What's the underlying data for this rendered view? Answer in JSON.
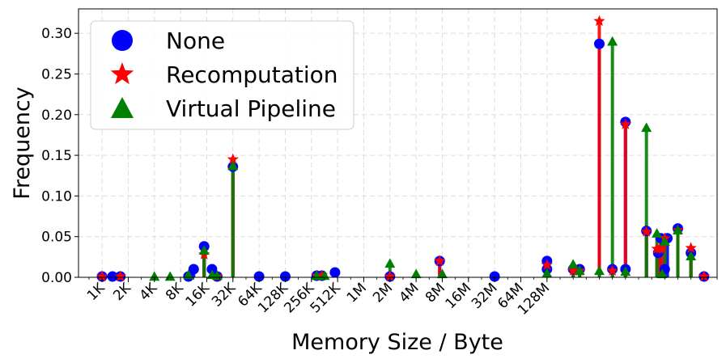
{
  "chart_data": {
    "type": "scatter",
    "style": "stem",
    "title": "",
    "xlabel": "Memory Size / Byte",
    "ylabel": "Frequency",
    "ylim": [
      0,
      0.33
    ],
    "x_scale": "log2",
    "x_tick_labels": [
      "1K",
      "2K",
      "4K",
      "8K",
      "16K",
      "32K",
      "64K",
      "128K",
      "256K",
      "512K",
      "1M",
      "2M",
      "4M",
      "8M",
      "16M",
      "32M",
      "64M",
      "128M"
    ],
    "y_ticks": [
      "0.00",
      "0.05",
      "0.10",
      "0.15",
      "0.20",
      "0.25",
      "0.30"
    ],
    "grid": true,
    "legend_position": "top-left",
    "series": [
      {
        "name": "None",
        "color": "#0000ff",
        "marker": "circle",
        "x_log2": [
          10.0,
          10.4,
          10.7,
          13.3,
          13.5,
          13.9,
          14.2,
          14.4,
          15.0,
          16.0,
          17.0,
          18.2,
          18.4,
          18.9,
          21.0,
          22.9,
          25.0,
          27.0,
          27.0,
          28.0,
          28.25,
          29.0,
          29.5,
          30.0,
          30.0,
          30.8,
          31.25,
          31.35,
          31.5,
          31.6,
          32.0,
          32.5,
          33.0
        ],
        "values": [
          0.001,
          0.001,
          0.001,
          0.001,
          0.01,
          0.038,
          0.01,
          0.001,
          0.136,
          0.001,
          0.001,
          0.002,
          0.002,
          0.006,
          0.001,
          0.02,
          0.001,
          0.01,
          0.02,
          0.01,
          0.01,
          0.287,
          0.01,
          0.191,
          0.01,
          0.057,
          0.03,
          0.048,
          0.01,
          0.048,
          0.06,
          0.03,
          0.001
        ]
      },
      {
        "name": "Recomputation",
        "color": "#ff0000",
        "marker": "star",
        "x_log2": [
          10.0,
          10.7,
          13.9,
          14.4,
          15.0,
          18.2,
          18.4,
          21.0,
          22.9,
          27.0,
          28.0,
          28.25,
          29.0,
          29.5,
          30.0,
          30.8,
          31.2,
          31.3,
          31.4,
          31.5,
          32.0,
          32.5,
          33.0
        ],
        "values": [
          0.001,
          0.001,
          0.028,
          0.001,
          0.145,
          0.002,
          0.002,
          0.001,
          0.02,
          0.015,
          0.008,
          0.008,
          0.315,
          0.008,
          0.188,
          0.056,
          0.035,
          0.035,
          0.035,
          0.048,
          0.058,
          0.036,
          0.001
        ]
      },
      {
        "name": "Virtual Pipeline",
        "color": "#008000",
        "marker": "triangle",
        "x_log2": [
          12.0,
          12.6,
          13.3,
          13.9,
          14.2,
          14.4,
          15.0,
          18.2,
          18.5,
          21.0,
          22.0,
          23.0,
          27.0,
          28.0,
          28.25,
          29.0,
          29.5,
          30.0,
          30.8,
          31.2,
          31.4,
          31.5,
          32.0,
          32.5
        ],
        "values": [
          0.001,
          0.001,
          0.003,
          0.033,
          0.003,
          0.002,
          0.137,
          0.002,
          0.002,
          0.017,
          0.004,
          0.004,
          0.005,
          0.016,
          0.008,
          0.008,
          0.29,
          0.007,
          0.184,
          0.054,
          0.004,
          0.044,
          0.058,
          0.026
        ]
      }
    ]
  }
}
